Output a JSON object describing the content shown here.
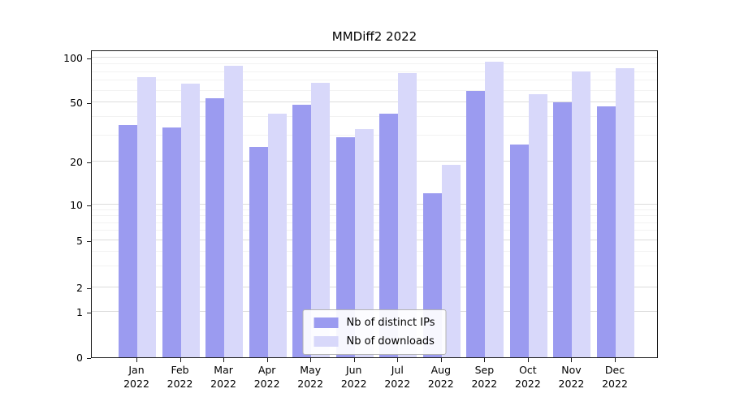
{
  "chart_data": {
    "type": "bar",
    "title": "MMDiff2 2022",
    "categories": [
      "Jan",
      "Feb",
      "Mar",
      "Apr",
      "May",
      "Jun",
      "Jul",
      "Aug",
      "Sep",
      "Oct",
      "Nov",
      "Dec"
    ],
    "year": "2022",
    "yticks": [
      0,
      1,
      2,
      5,
      10,
      20,
      50,
      100
    ],
    "xlabel": "",
    "ylabel": "",
    "grid": "horizontal",
    "scale": "symlog",
    "legend_position": "bottom-center",
    "series": [
      {
        "name": "Nb of distinct IPs",
        "color": "#9b9bf0",
        "values": [
          35,
          34,
          53,
          25,
          48,
          29,
          42,
          12,
          60,
          26,
          50,
          47
        ]
      },
      {
        "name": "Nb of downloads",
        "color": "#d8d8fa",
        "values": [
          74,
          67,
          88,
          42,
          68,
          33,
          79,
          19,
          94,
          57,
          81,
          85
        ]
      }
    ]
  }
}
